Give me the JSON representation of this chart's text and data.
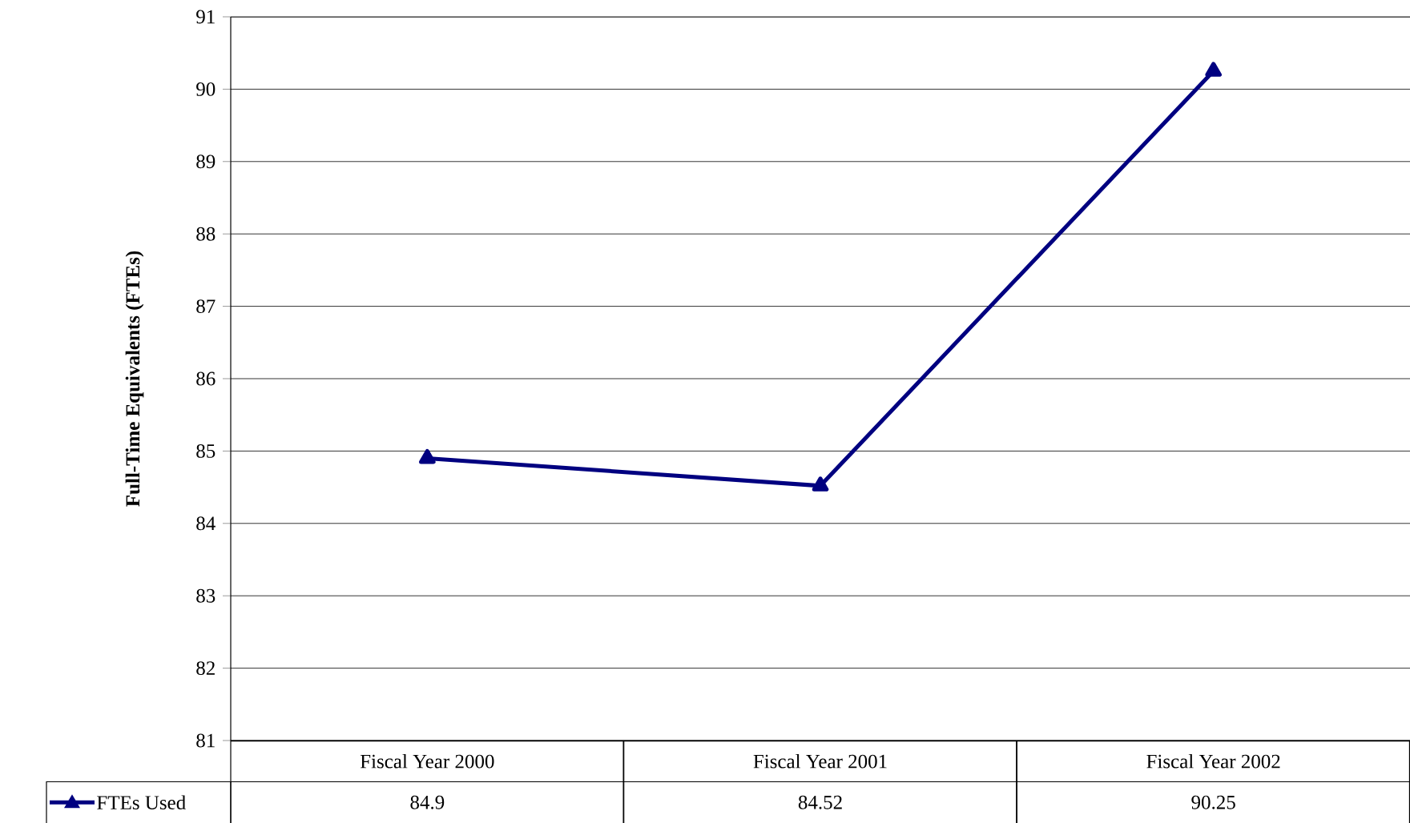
{
  "chart_data": {
    "type": "line",
    "ylabel": "Full-Time Equivalents (FTEs)",
    "categories": [
      "Fiscal Year 2000",
      "Fiscal Year 2001",
      "Fiscal Year 2002"
    ],
    "series": [
      {
        "name": "FTEs Used",
        "color": "#000080",
        "values": [
          84.9,
          84.52,
          90.25
        ]
      }
    ],
    "ylim": [
      81,
      91
    ],
    "yticks": [
      81,
      82,
      83,
      84,
      85,
      86,
      87,
      88,
      89,
      90,
      91
    ],
    "grid": "y",
    "legend": "bottom left",
    "marker": "triangle",
    "line_style": "solid",
    "data_labels": true
  }
}
